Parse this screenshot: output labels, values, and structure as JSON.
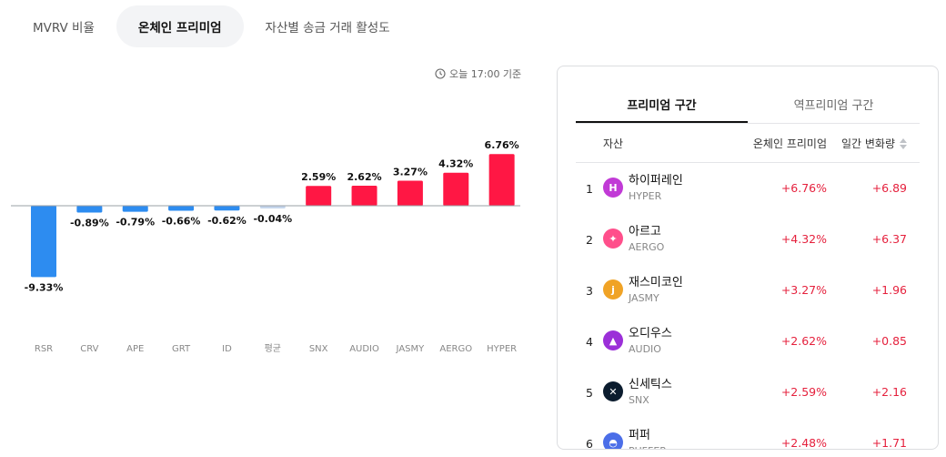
{
  "tabs": [
    "MVRV 비율",
    "온체인 프리미엄",
    "자산별 송금 거래 활성도"
  ],
  "active_tab": 1,
  "as_of": "오늘 17:00 기준",
  "colors": {
    "positive": "#ff1744",
    "negative": "#2d8cf0",
    "average": "#c5d6ec",
    "axis_label": "#888888",
    "text_red": "#e5213d"
  },
  "chart_data": {
    "type": "bar",
    "categories": [
      "RSR",
      "CRV",
      "APE",
      "GRT",
      "ID",
      "평균",
      "SNX",
      "AUDIO",
      "JASMY",
      "AERGO",
      "HYPER"
    ],
    "values": [
      -9.33,
      -0.89,
      -0.79,
      -0.66,
      -0.62,
      -0.04,
      2.59,
      2.62,
      3.27,
      4.32,
      6.76
    ],
    "value_labels": [
      "-9.33%",
      "-0.89%",
      "-0.79%",
      "-0.66%",
      "-0.62%",
      "-0.04%",
      "2.59%",
      "2.62%",
      "3.27%",
      "4.32%",
      "6.76%"
    ],
    "title": "",
    "xlabel": "",
    "ylabel": "",
    "grid": false
  },
  "panel": {
    "subtabs": [
      "프리미엄 구간",
      "역프리미엄 구간"
    ],
    "active_subtab": 0,
    "columns": {
      "asset": "자산",
      "premium": "온체인 프리미엄",
      "change": "일간 변화량"
    },
    "rows": [
      {
        "rank": "1",
        "name": "하이퍼레인",
        "ticker": "HYPER",
        "premium": "+6.76%",
        "change": "+6.89",
        "icon": "hyper-icon",
        "icon_color": "#c13ad6",
        "glyph": "H"
      },
      {
        "rank": "2",
        "name": "아르고",
        "ticker": "AERGO",
        "premium": "+4.32%",
        "change": "+6.37",
        "icon": "aergo-icon",
        "icon_color": "#ff4f8b",
        "glyph": "✦"
      },
      {
        "rank": "3",
        "name": "재스미코인",
        "ticker": "JASMY",
        "premium": "+3.27%",
        "change": "+1.96",
        "icon": "jasmy-icon",
        "icon_color": "#f0a326",
        "glyph": "j"
      },
      {
        "rank": "4",
        "name": "오디우스",
        "ticker": "AUDIO",
        "premium": "+2.62%",
        "change": "+0.85",
        "icon": "audio-icon",
        "icon_color": "#9b2fd8",
        "glyph": "▲"
      },
      {
        "rank": "5",
        "name": "신세틱스",
        "ticker": "SNX",
        "premium": "+2.59%",
        "change": "+2.16",
        "icon": "snx-icon",
        "icon_color": "#0b1c2e",
        "glyph": "✕"
      },
      {
        "rank": "6",
        "name": "퍼퍼",
        "ticker": "PUFFER",
        "premium": "+2.48%",
        "change": "+1.71",
        "icon": "puffer-icon",
        "icon_color": "#4b6ee8",
        "glyph": "◓"
      }
    ]
  }
}
